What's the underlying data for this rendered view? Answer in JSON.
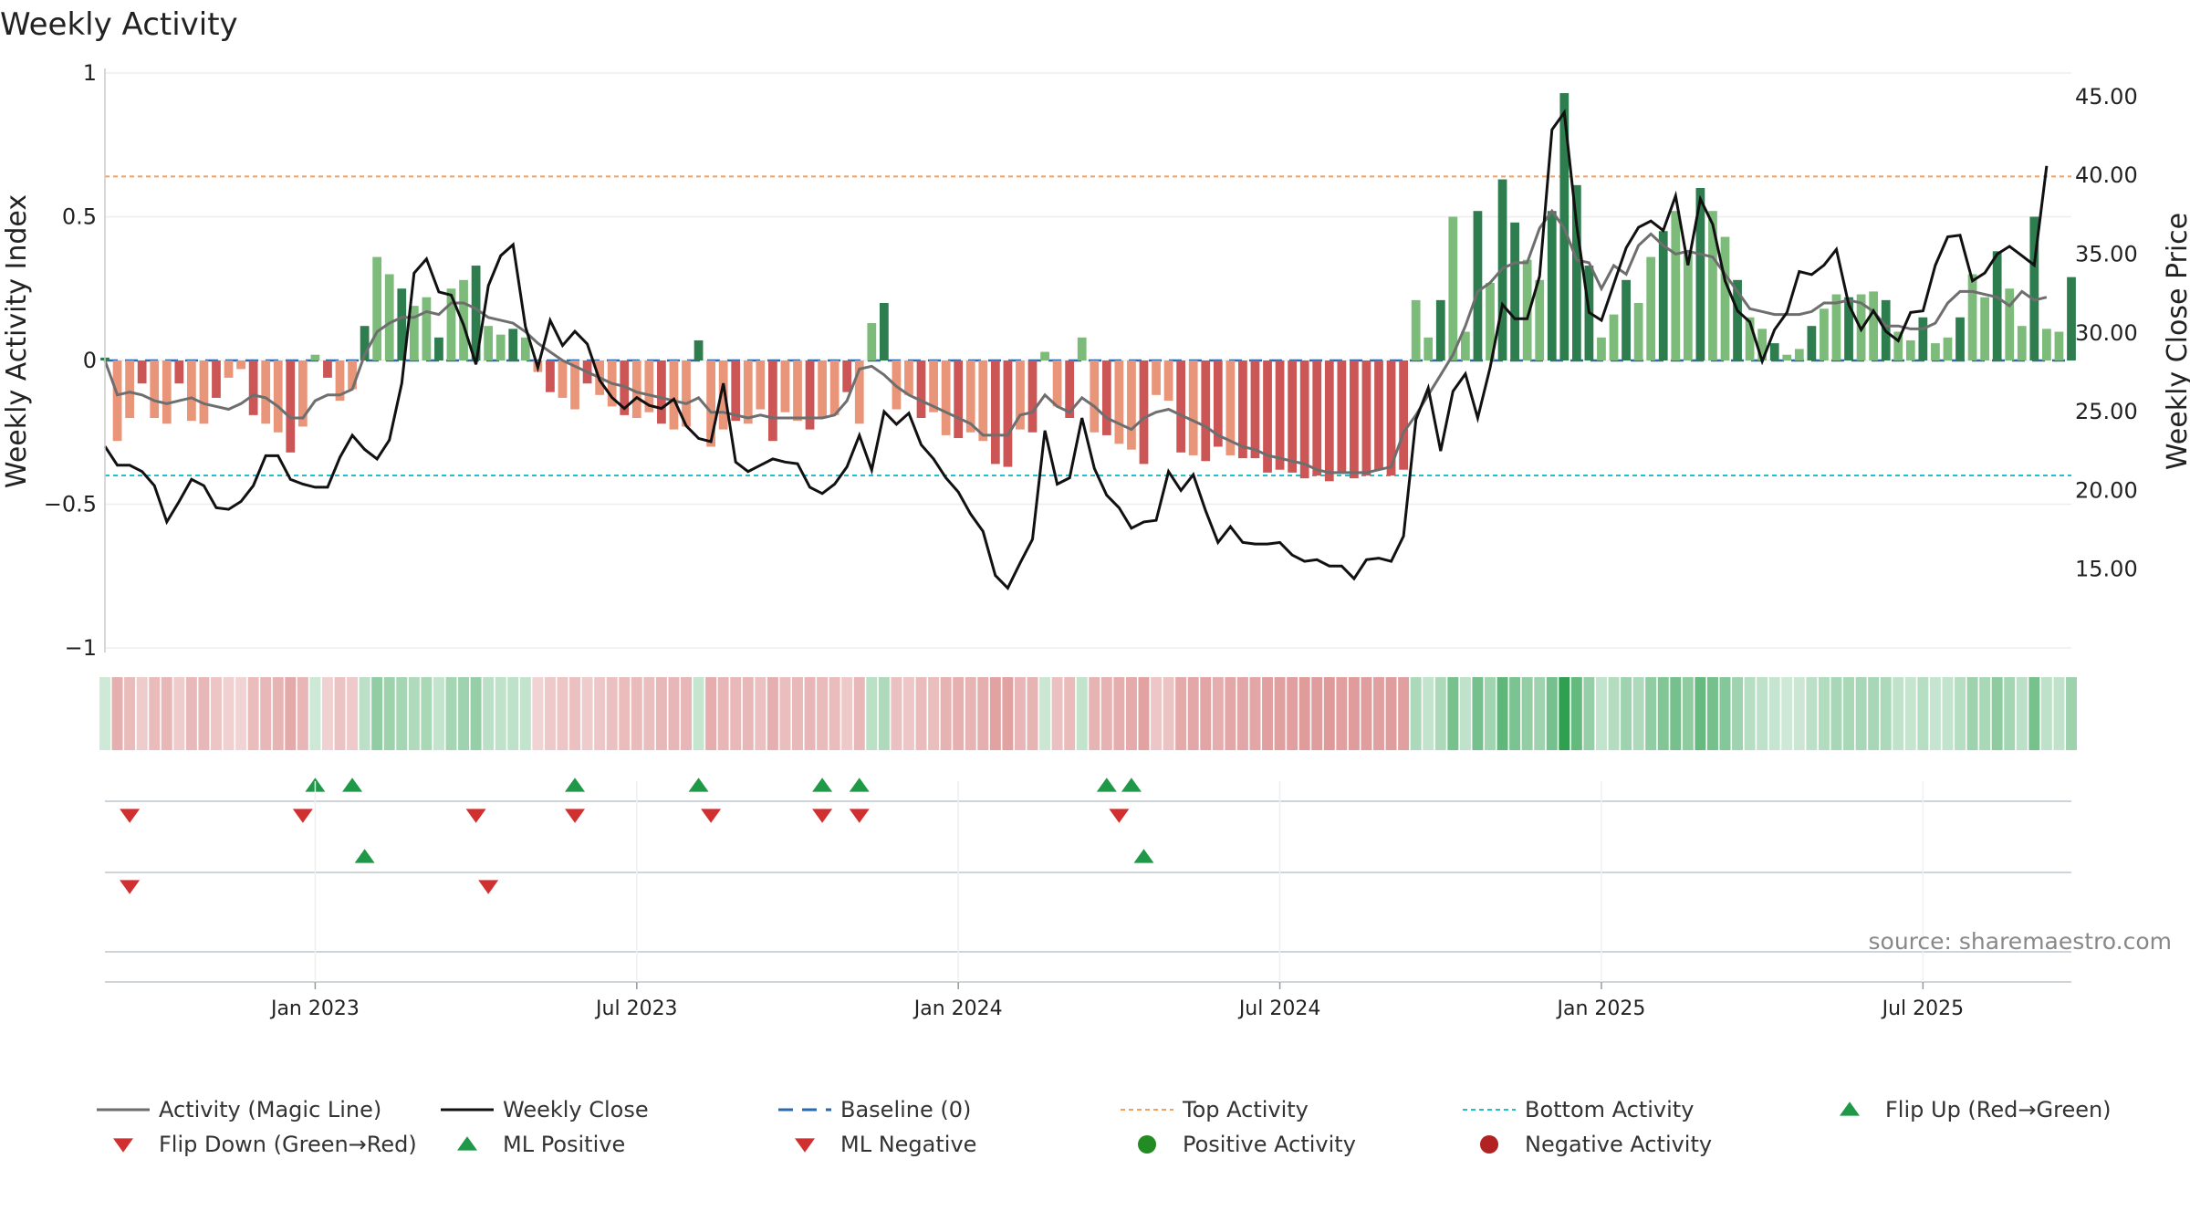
{
  "chart_data": {
    "type": "bar",
    "title": "Weekly Activity",
    "ylabel": "Weekly Activity Index",
    "y2label": "Weekly Close Price",
    "ylim": [
      -1,
      1
    ],
    "y2lim": [
      10,
      46.5
    ],
    "yticks": [
      1,
      0.5,
      0,
      -0.5,
      -1
    ],
    "ytick_labels": [
      "1",
      "0.5",
      "0",
      "−0.5",
      "−1"
    ],
    "y2ticks": [
      45,
      40,
      35,
      30,
      25,
      20,
      15
    ],
    "y2tick_labels": [
      "45.00",
      "40.00",
      "35.00",
      "30.00",
      "25.00",
      "20.00",
      "15.00"
    ],
    "xticks": [
      {
        "label": "Jan 2023",
        "week": 17
      },
      {
        "label": "Jul 2023",
        "week": 43
      },
      {
        "label": "Jan 2024",
        "week": 69
      },
      {
        "label": "Jul 2024",
        "week": 95
      },
      {
        "label": "Jan 2025",
        "week": 121
      },
      {
        "label": "Jul 2025",
        "week": 147
      }
    ],
    "top_activity": 0.64,
    "bottom_activity": -0.4,
    "x_range": [
      1,
      157
    ],
    "series": [
      {
        "name": "Activity",
        "values": [
          0.01,
          -0.28,
          -0.2,
          -0.08,
          -0.2,
          -0.22,
          -0.08,
          -0.21,
          -0.22,
          -0.13,
          -0.06,
          -0.03,
          -0.19,
          -0.22,
          -0.25,
          -0.32,
          -0.23,
          0.02,
          -0.06,
          -0.14,
          -0.1,
          0.12,
          0.36,
          0.3,
          0.25,
          0.19,
          0.22,
          0.08,
          0.25,
          0.28,
          0.33,
          0.12,
          0.09,
          0.11,
          0.08,
          -0.04,
          -0.11,
          -0.13,
          -0.17,
          -0.08,
          -0.12,
          -0.16,
          -0.19,
          -0.2,
          -0.18,
          -0.22,
          -0.24,
          -0.23,
          0.07,
          -0.3,
          -0.24,
          -0.21,
          -0.22,
          -0.17,
          -0.28,
          -0.18,
          -0.21,
          -0.24,
          -0.2,
          -0.19,
          -0.11,
          -0.22,
          0.13,
          0.2,
          -0.17,
          -0.12,
          -0.2,
          -0.18,
          -0.26,
          -0.27,
          -0.25,
          -0.28,
          -0.36,
          -0.37,
          -0.24,
          -0.25,
          0.03,
          -0.16,
          -0.2,
          0.08,
          -0.25,
          -0.26,
          -0.29,
          -0.31,
          -0.36,
          -0.12,
          -0.14,
          -0.32,
          -0.33,
          -0.35,
          -0.3,
          -0.33,
          -0.34,
          -0.34,
          -0.39,
          -0.38,
          -0.39,
          -0.41,
          -0.4,
          -0.42,
          -0.39,
          -0.41,
          -0.4,
          -0.38,
          -0.4,
          -0.38,
          0.21,
          0.08,
          0.21,
          0.5,
          0.1,
          0.52,
          0.27,
          0.63,
          0.48,
          0.35,
          0.28,
          0.52,
          0.93,
          0.61,
          0.33,
          0.08,
          0.16,
          0.28,
          0.2,
          0.36,
          0.45,
          0.52,
          0.38,
          0.6,
          0.52,
          0.43,
          0.28,
          0.15,
          0.11,
          0.06,
          0.02,
          0.04,
          0.12,
          0.18,
          0.23,
          0.22,
          0.23,
          0.24,
          0.21,
          0.1,
          0.07,
          0.15,
          0.06,
          0.08,
          0.15,
          0.3,
          0.22,
          0.38,
          0.25,
          0.12,
          0.5,
          0.11,
          0.1,
          0.29
        ]
      },
      {
        "name": "Activity (Magic Line)",
        "values": [
          0,
          -0.12,
          -0.11,
          -0.12,
          -0.14,
          -0.15,
          -0.14,
          -0.13,
          -0.15,
          -0.16,
          -0.17,
          -0.15,
          -0.12,
          -0.13,
          -0.16,
          -0.2,
          -0.2,
          -0.14,
          -0.12,
          -0.12,
          -0.1,
          0.02,
          0.1,
          0.13,
          0.15,
          0.15,
          0.17,
          0.16,
          0.2,
          0.2,
          0.18,
          0.15,
          0.14,
          0.13,
          0.1,
          0.06,
          0.03,
          0,
          -0.02,
          -0.04,
          -0.06,
          -0.08,
          -0.09,
          -0.11,
          -0.12,
          -0.13,
          -0.14,
          -0.15,
          -0.13,
          -0.18,
          -0.18,
          -0.19,
          -0.2,
          -0.19,
          -0.2,
          -0.2,
          -0.2,
          -0.2,
          -0.2,
          -0.19,
          -0.14,
          -0.03,
          -0.02,
          -0.05,
          -0.09,
          -0.12,
          -0.14,
          -0.16,
          -0.18,
          -0.2,
          -0.22,
          -0.26,
          -0.26,
          -0.26,
          -0.19,
          -0.18,
          -0.12,
          -0.16,
          -0.18,
          -0.13,
          -0.16,
          -0.2,
          -0.22,
          -0.24,
          -0.2,
          -0.18,
          -0.17,
          -0.19,
          -0.21,
          -0.23,
          -0.26,
          -0.28,
          -0.3,
          -0.31,
          -0.33,
          -0.34,
          -0.35,
          -0.36,
          -0.38,
          -0.39,
          -0.39,
          -0.39,
          -0.39,
          -0.38,
          -0.37,
          -0.25,
          -0.19,
          -0.12,
          -0.05,
          0.02,
          0.12,
          0.24,
          0.27,
          0.32,
          0.34,
          0.34,
          0.46,
          0.52,
          0.46,
          0.35,
          0.34,
          0.25,
          0.33,
          0.3,
          0.4,
          0.44,
          0.4,
          0.37,
          0.38,
          0.37,
          0.36,
          0.3,
          0.24,
          0.18,
          0.17,
          0.16,
          0.16,
          0.16,
          0.17,
          0.2,
          0.2,
          0.21,
          0.2,
          0.17,
          0.12,
          0.12,
          0.11,
          0.11,
          0.13,
          0.2,
          0.24,
          0.24,
          0.23,
          0.22,
          0.19,
          0.24,
          0.21,
          0.22
        ]
      },
      {
        "name": "Weekly Close",
        "values": [
          22.8,
          21.6,
          21.6,
          21.2,
          20.3,
          18,
          19.3,
          20.7,
          20.3,
          18.9,
          18.8,
          19.3,
          20.3,
          22.2,
          22.2,
          20.7,
          20.4,
          20.2,
          20.2,
          22.1,
          23.5,
          22.6,
          22,
          23.2,
          26.8,
          33.8,
          34.7,
          32.6,
          32.4,
          30.5,
          28,
          33,
          34.9,
          35.6,
          30.4,
          27.8,
          30.8,
          29.2,
          30.1,
          29.3,
          27,
          25.9,
          25.2,
          25.9,
          25.4,
          25.2,
          25.8,
          24.1,
          23.3,
          23.1,
          26.8,
          21.8,
          21.2,
          21.6,
          22,
          21.8,
          21.7,
          20.2,
          19.8,
          20.4,
          21.5,
          23.5,
          21.3,
          25,
          24.2,
          24.9,
          22.9,
          22,
          20.8,
          19.9,
          18.5,
          17.4,
          14.6,
          13.8,
          15.4,
          16.9,
          23.8,
          20.4,
          20.8,
          24.6,
          21.4,
          19.7,
          18.9,
          17.6,
          18,
          18.1,
          21.2,
          20,
          21,
          18.7,
          16.7,
          17.7,
          16.7,
          16.6,
          16.6,
          16.7,
          15.9,
          15.5,
          15.6,
          15.2,
          15.2,
          14.4,
          15.6,
          15.7,
          15.5,
          17.1,
          24.5,
          26.5,
          22.5,
          26.3,
          27.4,
          24.6,
          27.8,
          31.8,
          30.9,
          30.9,
          33.6,
          42.9,
          44,
          36.8,
          31.3,
          30.8,
          33.1,
          35.4,
          36.7,
          37.1,
          36.5,
          38.7,
          34.3,
          38.5,
          36.9,
          33.3,
          31.4,
          30.7,
          28.2,
          30.2,
          31.3,
          33.9,
          33.7,
          34.3,
          35.3,
          31.8,
          30.2,
          31.4,
          30.1,
          29.5,
          31.3,
          31.4,
          34.3,
          36.1,
          36.2,
          33.3,
          33.8,
          35,
          35.5,
          34.9,
          34.3,
          40.6
        ]
      }
    ],
    "top_strip_markers": [
      {
        "week": 17,
        "type": "Flip Up"
      },
      {
        "week": 20,
        "type": "Flip Up"
      },
      {
        "week": 38,
        "type": "Flip Up"
      },
      {
        "week": 48,
        "type": "Flip Up"
      },
      {
        "week": 58,
        "type": "Flip Up"
      },
      {
        "week": 61,
        "type": "Flip Up"
      },
      {
        "week": 81,
        "type": "Flip Up"
      },
      {
        "week": 83,
        "type": "Flip Up"
      },
      {
        "week": 2,
        "type": "Flip Down"
      },
      {
        "week": 16,
        "type": "Flip Down"
      },
      {
        "week": 30,
        "type": "Flip Down"
      },
      {
        "week": 38,
        "type": "Flip Down"
      },
      {
        "week": 49,
        "type": "Flip Down"
      },
      {
        "week": 58,
        "type": "Flip Down"
      },
      {
        "week": 61,
        "type": "Flip Down"
      },
      {
        "week": 82,
        "type": "Flip Down"
      }
    ],
    "ml_markers": [
      {
        "week": 21,
        "type": "ML Positive"
      },
      {
        "week": 84,
        "type": "ML Positive"
      },
      {
        "week": 2,
        "type": "ML Negative"
      },
      {
        "week": 31,
        "type": "ML Negative"
      }
    ],
    "legend": [
      "Activity (Magic Line)",
      "Weekly Close",
      "Baseline (0)",
      "Top Activity",
      "Bottom Activity",
      "Flip Up (Red→Green)",
      "Flip Down (Green→Red)",
      "ML Positive",
      "ML Negative",
      "Positive Activity",
      "Negative Activity"
    ],
    "colors": {
      "pos_dark": "#2e7d4f",
      "pos_light": "#7dbb7b",
      "neg_dark": "#cc5555",
      "neg_light": "#e8957a",
      "magic": "#6e6e6e",
      "close": "#111111",
      "baseline": "#2a6bb0",
      "top": "#f0a060",
      "bottom": "#22c0cc",
      "up": "#1f9948",
      "down": "#d03030",
      "dot_pos": "#228b22",
      "dot_neg": "#b22222"
    }
  },
  "source": "source: sharemaestro.com"
}
